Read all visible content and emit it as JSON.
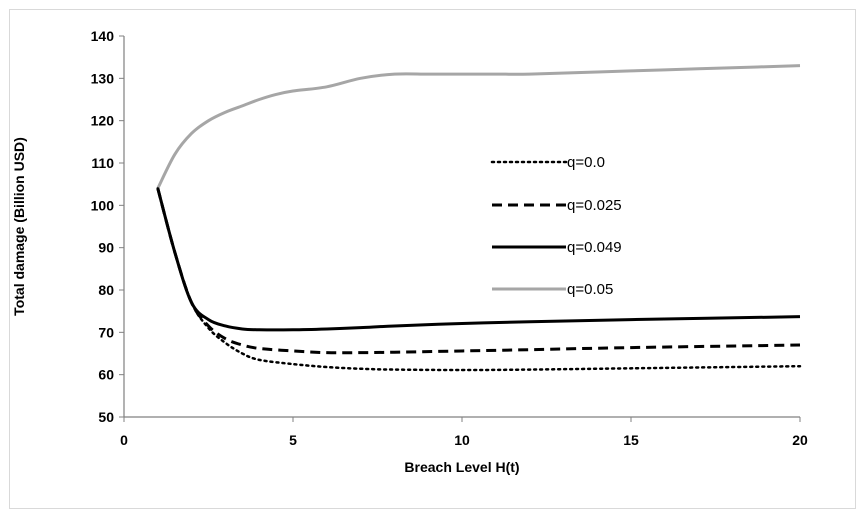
{
  "chart_data": {
    "type": "line",
    "title": "",
    "xlabel": "Breach Level H(t)",
    "ylabel": "Total damage (Billion USD)",
    "xlim": [
      0,
      20
    ],
    "ylim": [
      50,
      140
    ],
    "x_ticks": [
      0,
      5,
      10,
      15,
      20
    ],
    "y_ticks": [
      50,
      60,
      70,
      80,
      90,
      100,
      110,
      120,
      130,
      140
    ],
    "grid": false,
    "legend_position": "inside-right",
    "series": [
      {
        "name": "q=0.0",
        "style": "dotted",
        "color": "#000000",
        "x": [
          1,
          1.5,
          2,
          2.5,
          3,
          3.5,
          4,
          5,
          6,
          7,
          8,
          10,
          12,
          15,
          20
        ],
        "y": [
          104,
          89,
          77,
          71,
          67.5,
          65,
          63.5,
          62.5,
          61.8,
          61.4,
          61.2,
          61.1,
          61.2,
          61.5,
          62
        ]
      },
      {
        "name": "q=0.025",
        "style": "dashed",
        "color": "#000000",
        "x": [
          1,
          1.5,
          2,
          2.5,
          3,
          3.5,
          4,
          5,
          6,
          7,
          8,
          10,
          12,
          15,
          20
        ],
        "y": [
          104,
          89,
          77,
          71.5,
          68.5,
          67,
          66.2,
          65.6,
          65.2,
          65.2,
          65.3,
          65.6,
          65.9,
          66.4,
          67
        ]
      },
      {
        "name": "q=0.049",
        "style": "solid",
        "color": "#000000",
        "x": [
          1,
          1.5,
          2,
          2.5,
          3,
          3.5,
          4,
          5,
          6,
          7,
          8,
          10,
          12,
          15,
          20
        ],
        "y": [
          104,
          89,
          77,
          73,
          71.5,
          70.8,
          70.6,
          70.6,
          70.8,
          71.1,
          71.5,
          72.1,
          72.5,
          73,
          73.7
        ]
      },
      {
        "name": "q=0.05",
        "style": "solid",
        "color": "#a6a6a6",
        "x": [
          1,
          1.5,
          2,
          2.5,
          3,
          3.5,
          4,
          4.5,
          5,
          6,
          7,
          8,
          9,
          10,
          11,
          12,
          14,
          16,
          18,
          20
        ],
        "y": [
          104,
          112,
          117,
          120,
          122,
          123.5,
          125,
          126.2,
          127,
          128,
          130,
          131,
          131,
          131,
          131,
          131,
          131.5,
          132,
          132.5,
          133
        ]
      }
    ]
  }
}
